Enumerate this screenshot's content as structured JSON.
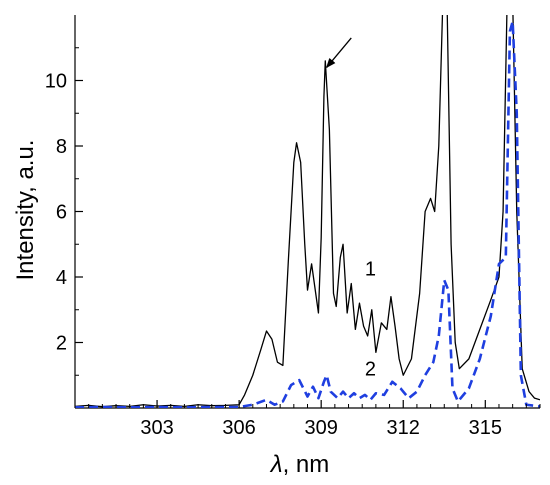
{
  "chart_data": {
    "type": "line",
    "xlabel_symbol": "λ",
    "xlabel_unit": ", nm",
    "ylabel": "Intensity, a.u.",
    "xlim": [
      300,
      317
    ],
    "ylim": [
      0,
      12
    ],
    "x_ticks": [
      303,
      306,
      309,
      312,
      315
    ],
    "y_ticks": [
      2,
      4,
      6,
      8,
      10
    ],
    "x_tick_labels": [
      "303",
      "306",
      "309",
      "312",
      "315"
    ],
    "y_tick_labels": [
      "2",
      "4",
      "6",
      "8",
      "10"
    ],
    "grid": false,
    "series": [
      {
        "label": "1",
        "color": "#000000",
        "style": "solid",
        "points": [
          [
            300.0,
            0.05
          ],
          [
            300.5,
            0.08
          ],
          [
            301.0,
            0.04
          ],
          [
            301.5,
            0.07
          ],
          [
            302.0,
            0.05
          ],
          [
            302.5,
            0.1
          ],
          [
            303.0,
            0.06
          ],
          [
            303.5,
            0.08
          ],
          [
            304.0,
            0.05
          ],
          [
            304.5,
            0.1
          ],
          [
            305.0,
            0.07
          ],
          [
            305.5,
            0.08
          ],
          [
            306.0,
            0.1
          ],
          [
            306.2,
            0.4
          ],
          [
            306.5,
            1.0
          ],
          [
            306.8,
            1.8
          ],
          [
            307.0,
            2.35
          ],
          [
            307.2,
            2.1
          ],
          [
            307.4,
            1.4
          ],
          [
            307.6,
            1.3
          ],
          [
            307.8,
            4.5
          ],
          [
            308.0,
            7.5
          ],
          [
            308.1,
            8.1
          ],
          [
            308.25,
            7.5
          ],
          [
            308.4,
            5.0
          ],
          [
            308.5,
            3.6
          ],
          [
            308.65,
            4.4
          ],
          [
            308.8,
            3.5
          ],
          [
            308.9,
            2.9
          ],
          [
            309.0,
            5.2
          ],
          [
            309.1,
            9.5
          ],
          [
            309.15,
            10.6
          ],
          [
            309.3,
            8.5
          ],
          [
            309.45,
            3.5
          ],
          [
            309.55,
            3.1
          ],
          [
            309.7,
            4.6
          ],
          [
            309.8,
            5.0
          ],
          [
            309.95,
            2.9
          ],
          [
            310.1,
            3.8
          ],
          [
            310.25,
            2.4
          ],
          [
            310.4,
            3.2
          ],
          [
            310.55,
            2.5
          ],
          [
            310.7,
            2.2
          ],
          [
            310.85,
            3.0
          ],
          [
            311.0,
            1.7
          ],
          [
            311.2,
            2.6
          ],
          [
            311.4,
            2.4
          ],
          [
            311.55,
            3.4
          ],
          [
            311.7,
            2.5
          ],
          [
            311.85,
            1.5
          ],
          [
            312.0,
            1.0
          ],
          [
            312.3,
            1.5
          ],
          [
            312.6,
            3.5
          ],
          [
            312.8,
            6.0
          ],
          [
            313.0,
            6.4
          ],
          [
            313.15,
            6.0
          ],
          [
            313.3,
            8.0
          ],
          [
            313.45,
            12.5
          ],
          [
            313.6,
            12.5
          ],
          [
            313.75,
            5.0
          ],
          [
            313.9,
            2.0
          ],
          [
            314.05,
            1.2
          ],
          [
            314.4,
            1.5
          ],
          [
            314.8,
            2.4
          ],
          [
            315.2,
            3.3
          ],
          [
            315.5,
            4.0
          ],
          [
            315.65,
            6.0
          ],
          [
            315.8,
            12.5
          ],
          [
            316.0,
            12.5
          ],
          [
            316.15,
            6.0
          ],
          [
            316.35,
            1.2
          ],
          [
            316.6,
            0.5
          ],
          [
            316.8,
            0.3
          ],
          [
            317.0,
            0.25
          ]
        ]
      },
      {
        "label": "2",
        "color": "#1f3fe0",
        "style": "dashed",
        "points": [
          [
            300.0,
            0.02
          ],
          [
            301.0,
            0.03
          ],
          [
            302.0,
            0.02
          ],
          [
            303.0,
            0.03
          ],
          [
            304.0,
            0.02
          ],
          [
            305.0,
            0.03
          ],
          [
            306.0,
            0.03
          ],
          [
            306.5,
            0.1
          ],
          [
            307.0,
            0.25
          ],
          [
            307.3,
            0.1
          ],
          [
            307.6,
            0.2
          ],
          [
            307.9,
            0.7
          ],
          [
            308.2,
            0.85
          ],
          [
            308.5,
            0.35
          ],
          [
            308.7,
            0.65
          ],
          [
            308.9,
            0.3
          ],
          [
            309.1,
            0.8
          ],
          [
            309.2,
            1.0
          ],
          [
            309.35,
            0.5
          ],
          [
            309.6,
            0.3
          ],
          [
            309.8,
            0.5
          ],
          [
            310.0,
            0.3
          ],
          [
            310.2,
            0.45
          ],
          [
            310.4,
            0.3
          ],
          [
            310.6,
            0.4
          ],
          [
            310.8,
            0.25
          ],
          [
            311.0,
            0.45
          ],
          [
            311.3,
            0.4
          ],
          [
            311.6,
            0.8
          ],
          [
            311.9,
            0.6
          ],
          [
            312.2,
            0.3
          ],
          [
            312.5,
            0.5
          ],
          [
            312.8,
            1.0
          ],
          [
            313.1,
            1.4
          ],
          [
            313.3,
            2.2
          ],
          [
            313.5,
            3.9
          ],
          [
            313.65,
            3.6
          ],
          [
            313.8,
            0.6
          ],
          [
            314.0,
            0.2
          ],
          [
            314.4,
            0.6
          ],
          [
            314.8,
            1.5
          ],
          [
            315.2,
            2.8
          ],
          [
            315.5,
            4.4
          ],
          [
            315.75,
            4.6
          ],
          [
            315.9,
            11.5
          ],
          [
            316.0,
            11.8
          ],
          [
            316.15,
            9.0
          ],
          [
            316.3,
            1.0
          ],
          [
            316.5,
            0.1
          ],
          [
            317.0,
            0.05
          ]
        ]
      }
    ],
    "annotations": [
      {
        "type": "arrow",
        "target": [
          309.2,
          10.4
        ],
        "from": [
          310.1,
          11.3
        ]
      },
      {
        "type": "text",
        "text": "1",
        "at": [
          310.8,
          4.05
        ]
      },
      {
        "type": "text",
        "text": "2",
        "at": [
          310.8,
          1.0
        ]
      }
    ]
  }
}
